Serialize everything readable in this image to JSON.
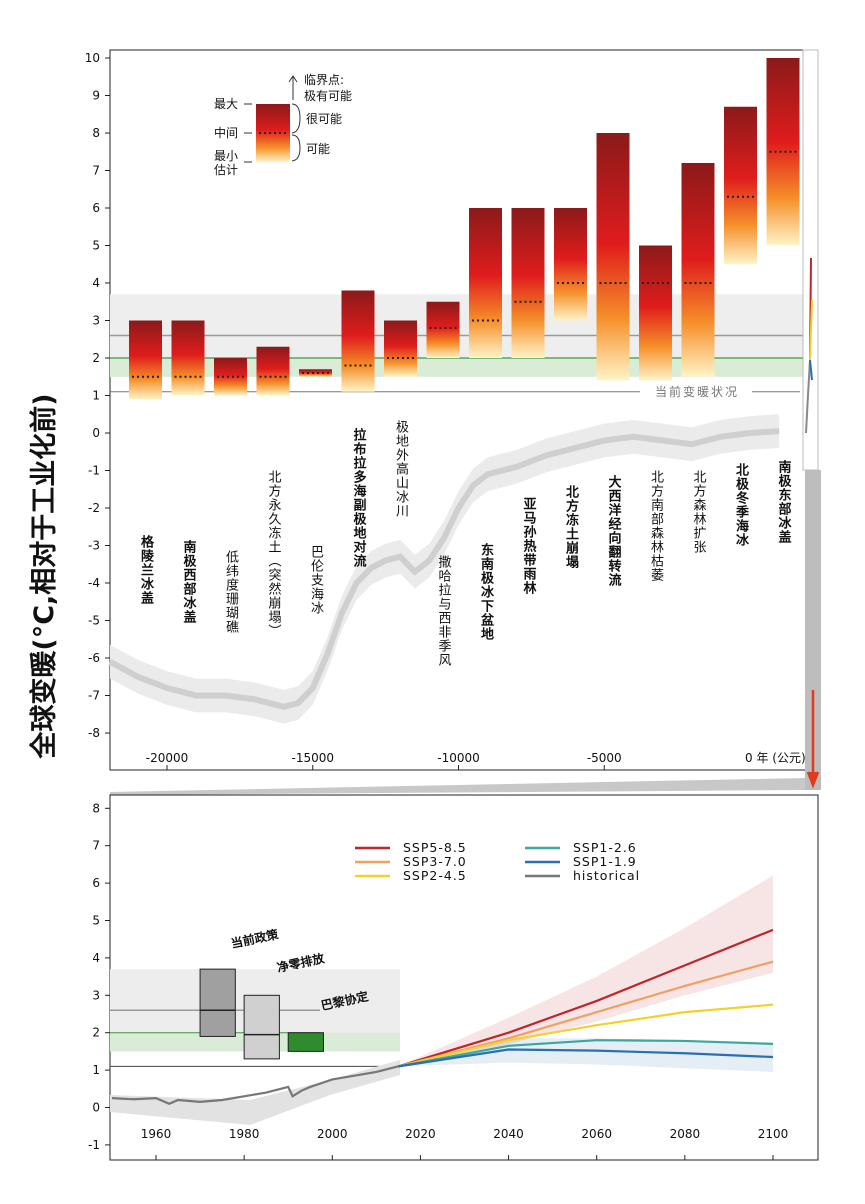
{
  "y_axis_label": "全球变暖(°C,相对于工业化前)",
  "chart_data": [
    {
      "type": "bar",
      "panel": "paleo-and-tipping-points",
      "ylim": [
        -8.5,
        10.2
      ],
      "yticks": [
        10,
        9,
        8,
        7,
        6,
        5,
        4,
        3,
        2,
        1,
        0,
        -1,
        -2,
        -3,
        -4,
        -5,
        -6,
        -7,
        -8
      ],
      "xlim": [
        -22000,
        2000
      ],
      "xticks": [
        -20000,
        -15000,
        -10000,
        -5000
      ],
      "xtick_last_label": "0 年 (公元)",
      "current_warming_label": "当前变暖状况",
      "current_warming": 1.1,
      "legend": {
        "tipping_label": "临界点:",
        "tipping_label2": "极有可能",
        "very_likely": "很可能",
        "likely": "可能",
        "max": "最大",
        "central": "中间",
        "min1": "最小",
        "min2": "估计"
      },
      "reference_lines": {
        "gray": 2.6,
        "green": 2.0,
        "gray_band": [
          1.5,
          3.7
        ],
        "green_band": [
          1.5,
          2.0
        ]
      },
      "bars": [
        {
          "label": "格陵兰冰盖",
          "bold": true,
          "max": 3.0,
          "min": 0.9,
          "central": 1.5
        },
        {
          "label": "南极西部冰盖",
          "bold": true,
          "max": 3.0,
          "min": 1.0,
          "central": 1.5
        },
        {
          "label": "低纬度珊瑚礁",
          "bold": false,
          "max": 2.0,
          "min": 1.0,
          "central": 1.5
        },
        {
          "label": "北方永久冻土（突然崩塌）",
          "bold": false,
          "max": 2.3,
          "min": 1.0,
          "central": 1.5
        },
        {
          "label": "巴伦支海冰",
          "bold": false,
          "max": 1.7,
          "min": 1.5,
          "central": 1.6
        },
        {
          "label": "拉布拉多海副极地对流",
          "bold": true,
          "max": 3.8,
          "min": 1.1,
          "central": 1.8
        },
        {
          "label": "极地外高山冰川",
          "bold": false,
          "max": 3.0,
          "min": 1.5,
          "central": 2.0
        },
        {
          "label": "撒哈拉与西非季风",
          "bold": false,
          "max": 3.5,
          "min": 2.0,
          "central": 2.8
        },
        {
          "label": "东南极冰下盆地",
          "bold": true,
          "max": 6.0,
          "min": 2.0,
          "central": 3.0
        },
        {
          "label": "亚马孙热带雨林",
          "bold": true,
          "max": 6.0,
          "min": 2.0,
          "central": 3.5
        },
        {
          "label": "北方冻土崩塌",
          "bold": true,
          "max": 6.0,
          "min": 3.0,
          "central": 4.0
        },
        {
          "label": "大西洋经向翻转流",
          "bold": true,
          "max": 8.0,
          "min": 1.4,
          "central": 4.0
        },
        {
          "label": "北方南部森林枯萎",
          "bold": false,
          "max": 5.0,
          "min": 1.4,
          "central": 4.0
        },
        {
          "label": "北方森林扩张",
          "bold": false,
          "max": 7.2,
          "min": 1.5,
          "central": 4.0
        },
        {
          "label": "北极冬季海冰",
          "bold": true,
          "max": 8.7,
          "min": 4.5,
          "central": 6.3
        },
        {
          "label": "南极东部冰盖",
          "bold": true,
          "max": 10.0,
          "min": 5.0,
          "central": 7.5
        }
      ],
      "paleo_series": {
        "x": [
          -22000,
          -21000,
          -20000,
          -19000,
          -18000,
          -17000,
          -16000,
          -15500,
          -15000,
          -14500,
          -14000,
          -13500,
          -13000,
          -12500,
          -12000,
          -11500,
          -11000,
          -10500,
          -10000,
          -9500,
          -9000,
          -8000,
          -7000,
          -6000,
          -5000,
          -4000,
          -3000,
          -2000,
          -1000,
          0,
          1000
        ],
        "y": [
          -6.1,
          -6.5,
          -6.8,
          -7.0,
          -7.0,
          -7.1,
          -7.3,
          -7.2,
          -6.8,
          -5.9,
          -4.8,
          -4.0,
          -3.6,
          -3.4,
          -3.3,
          -3.7,
          -3.4,
          -2.8,
          -2.0,
          -1.4,
          -1.1,
          -0.9,
          -0.6,
          -0.4,
          -0.2,
          -0.1,
          -0.2,
          -0.3,
          -0.1,
          0.0,
          0.05
        ]
      }
    },
    {
      "type": "line",
      "panel": "projections",
      "ylim": [
        -1,
        8.5
      ],
      "yticks": [
        8,
        7,
        6,
        5,
        4,
        3,
        2,
        1,
        0,
        -1
      ],
      "xlim": [
        1950,
        2105
      ],
      "xticks": [
        1960,
        1980,
        2000,
        2020,
        2040,
        2060,
        2080,
        2100
      ],
      "reference_lines": {
        "gray": 2.6,
        "green": 2.0,
        "black": 1.1
      },
      "boxes": [
        {
          "label": "当前政策",
          "min": 1.9,
          "max": 3.7,
          "central": 2.6,
          "x0": 1970,
          "x1": 1978,
          "color": "#a0a0a0"
        },
        {
          "label": "净零排放",
          "min": 1.3,
          "max": 3.0,
          "central": 1.95,
          "x0": 1980,
          "x1": 1988,
          "color": "#d0d0d0"
        },
        {
          "label": "巴黎协定",
          "min": 1.5,
          "max": 2.0,
          "central": null,
          "x0": 1990,
          "x1": 1998,
          "color": "#2e8b2e"
        }
      ],
      "series": [
        {
          "name": "SSP5-8.5",
          "color": "#c0252a",
          "x": [
            2015,
            2040,
            2060,
            2080,
            2100
          ],
          "y": [
            1.1,
            2.0,
            2.85,
            3.8,
            4.75
          ],
          "band": [
            [
              1.1,
              1.1
            ],
            [
              1.7,
              2.4
            ],
            [
              2.3,
              3.5
            ],
            [
              3.0,
              4.8
            ],
            [
              3.6,
              6.2
            ]
          ]
        },
        {
          "name": "SSP3-7.0",
          "color": "#f0a060",
          "x": [
            2015,
            2040,
            2060,
            2080,
            2100
          ],
          "y": [
            1.1,
            1.85,
            2.55,
            3.25,
            3.9
          ]
        },
        {
          "name": "SSP2-4.5",
          "color": "#f2d22a",
          "x": [
            2015,
            2040,
            2060,
            2080,
            2100
          ],
          "y": [
            1.1,
            1.8,
            2.2,
            2.55,
            2.75
          ]
        },
        {
          "name": "SSP1-2.6",
          "color": "#3aa89a",
          "x": [
            2015,
            2040,
            2060,
            2080,
            2100
          ],
          "y": [
            1.1,
            1.65,
            1.8,
            1.78,
            1.7
          ]
        },
        {
          "name": "SSP1-1.9",
          "color": "#2a6fb0",
          "x": [
            2015,
            2040,
            2060,
            2080,
            2100
          ],
          "y": [
            1.1,
            1.55,
            1.52,
            1.45,
            1.35
          ],
          "band": [
            [
              1.1,
              1.1
            ],
            [
              1.2,
              1.85
            ],
            [
              1.15,
              1.85
            ],
            [
              1.05,
              1.8
            ],
            [
              0.95,
              1.75
            ]
          ]
        },
        {
          "name": "historical",
          "color": "#777777",
          "x": [
            1950,
            1955,
            1960,
            1963,
            1965,
            1970,
            1975,
            1980,
            1985,
            1990,
            1991,
            1993,
            1995,
            2000,
            2005,
            2010,
            2015
          ],
          "y": [
            0.25,
            0.22,
            0.25,
            0.1,
            0.2,
            0.15,
            0.2,
            0.3,
            0.4,
            0.55,
            0.3,
            0.45,
            0.55,
            0.75,
            0.85,
            0.95,
            1.1
          ]
        }
      ]
    }
  ]
}
